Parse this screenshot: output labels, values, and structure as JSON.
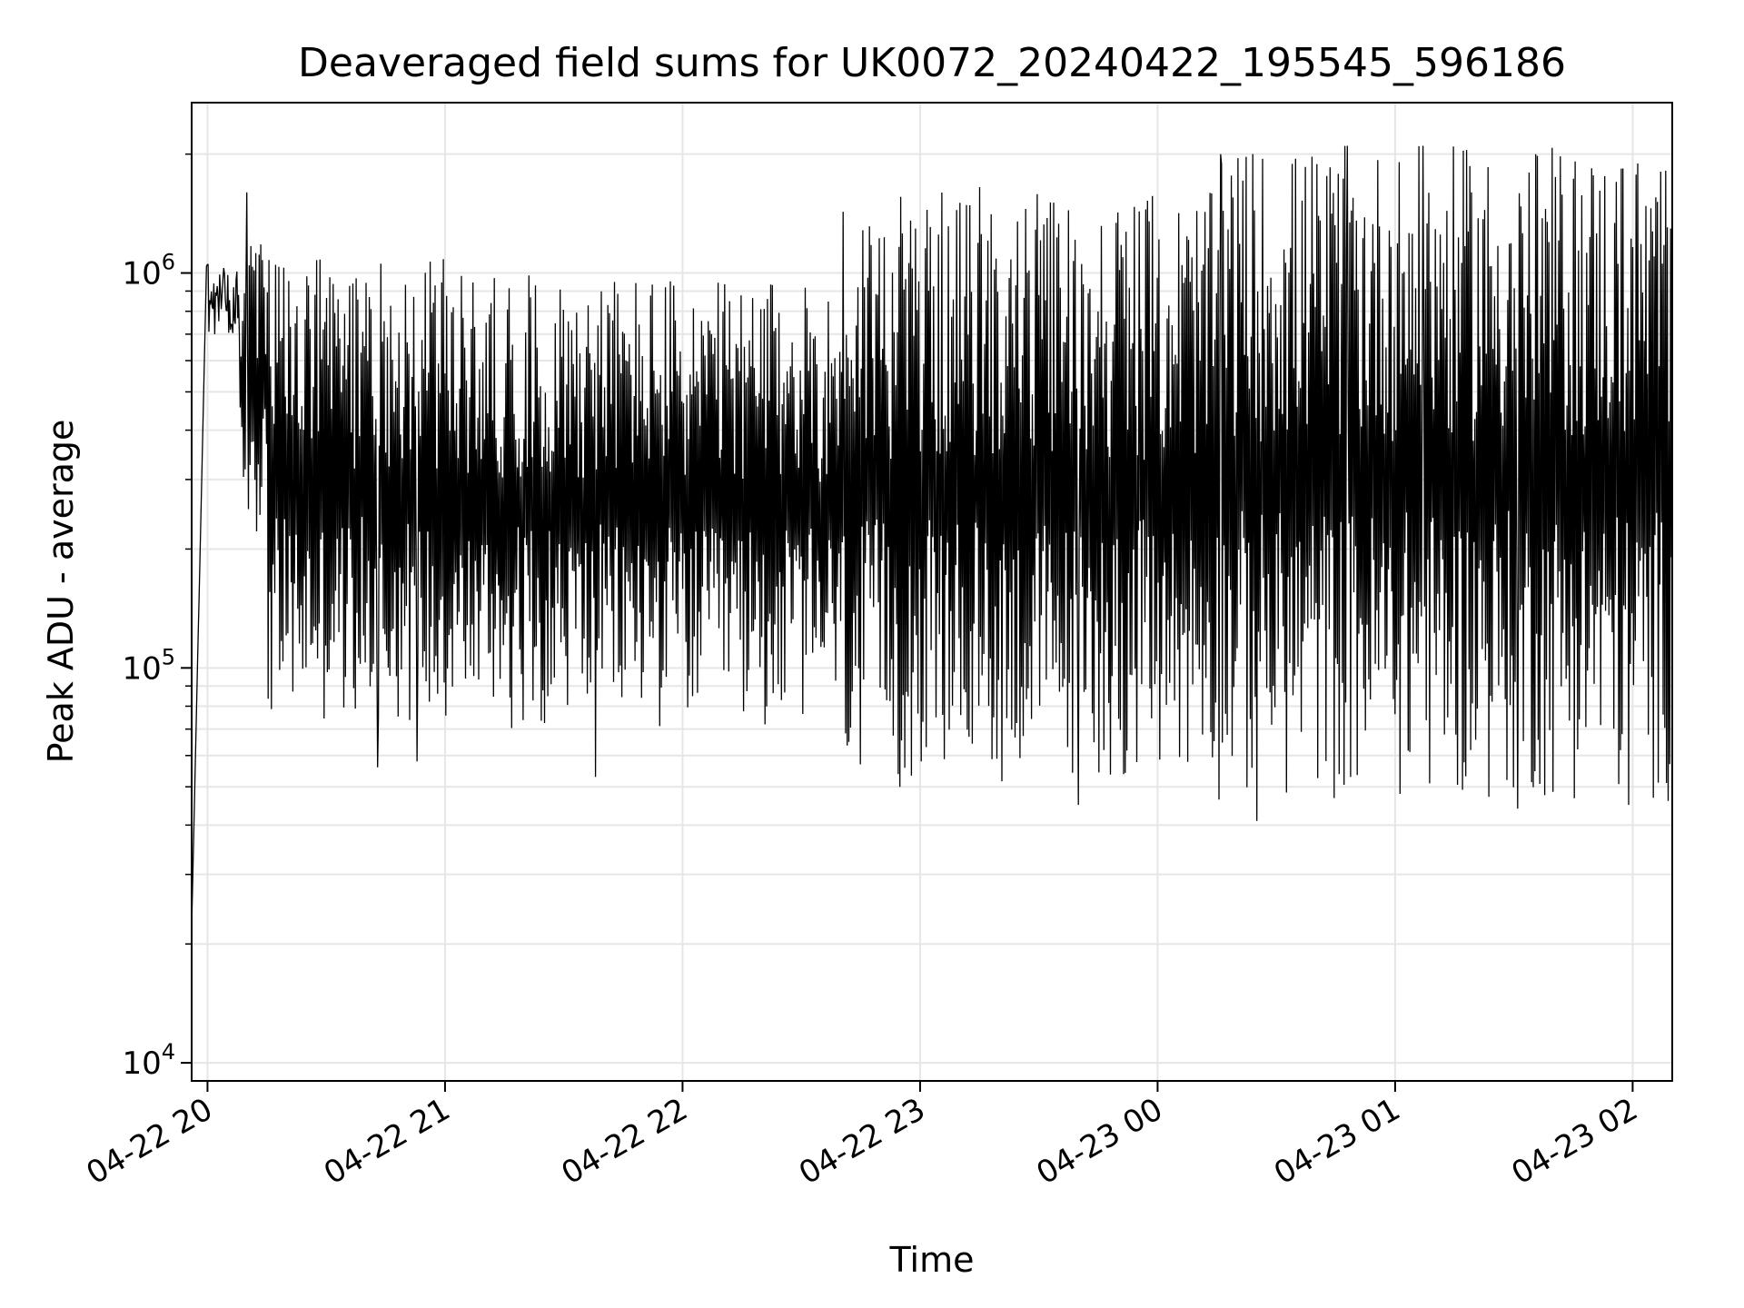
{
  "chart_data": {
    "type": "line",
    "title": "Deaveraged field sums for UK0072_20240422_195545_596186",
    "xlabel": "Time",
    "ylabel": "Peak ADU - average",
    "yscale": "log",
    "ylim": [
      9000,
      2700000
    ],
    "xlim": [
      "2024-04-22 19:56",
      "2024-04-23 02:10"
    ],
    "grid": true,
    "line_color": "#000000",
    "grid_color": "#e6e6e6",
    "x_ticks": [
      {
        "value": "2024-04-22 20:00",
        "label": "04-22 20"
      },
      {
        "value": "2024-04-22 21:00",
        "label": "04-22 21"
      },
      {
        "value": "2024-04-22 22:00",
        "label": "04-22 22"
      },
      {
        "value": "2024-04-22 23:00",
        "label": "04-22 23"
      },
      {
        "value": "2024-04-23 00:00",
        "label": "04-23 00"
      },
      {
        "value": "2024-04-23 01:00",
        "label": "04-23 01"
      },
      {
        "value": "2024-04-23 02:00",
        "label": "04-23 02"
      }
    ],
    "y_ticks": [
      {
        "value": 10000,
        "base": "10",
        "exp": "4"
      },
      {
        "value": 100000,
        "base": "10",
        "exp": "5"
      },
      {
        "value": 1000000,
        "base": "10",
        "exp": "6"
      }
    ],
    "series": [
      {
        "description": "dense oscillating signal; envelope per segment",
        "envelope": [
          {
            "t_start": "2024-04-22 19:56",
            "t_end": "2024-04-22 20:08",
            "low": 22000,
            "high": 1050000
          },
          {
            "t_start": "2024-04-22 20:08",
            "t_end": "2024-04-22 20:15",
            "low": 220000,
            "high": 1250000
          },
          {
            "t_start": "2024-04-22 20:15",
            "t_end": "2024-04-22 21:00",
            "low": 70000,
            "high": 1100000
          },
          {
            "t_start": "2024-04-22 21:00",
            "t_end": "2024-04-22 22:00",
            "low": 70000,
            "high": 1000000
          },
          {
            "t_start": "2024-04-22 22:00",
            "t_end": "2024-04-22 22:40",
            "low": 70000,
            "high": 950000
          },
          {
            "t_start": "2024-04-22 22:40",
            "t_end": "2024-04-23 00:15",
            "low": 50000,
            "high": 1600000
          },
          {
            "t_start": "2024-04-23 00:15",
            "t_end": "2024-04-23 02:10",
            "low": 45000,
            "high": 2100000
          }
        ],
        "spikes": [
          {
            "t": "2024-04-22 20:10",
            "value": 1600000
          },
          {
            "t": "2024-04-22 20:43",
            "value": 56000
          },
          {
            "t": "2024-04-22 20:53",
            "value": 58000
          },
          {
            "t": "2024-04-22 21:38",
            "value": 53000
          },
          {
            "t": "2024-04-22 22:45",
            "value": 57000
          },
          {
            "t": "2024-04-22 22:55",
            "value": 50000
          },
          {
            "t": "2024-04-22 23:15",
            "value": 1650000
          },
          {
            "t": "2024-04-22 23:40",
            "value": 45000
          },
          {
            "t": "2024-04-23 00:16",
            "value": 2000000
          },
          {
            "t": "2024-04-23 00:25",
            "value": 41000
          },
          {
            "t": "2024-04-23 00:48",
            "value": 2100000
          },
          {
            "t": "2024-04-23 01:07",
            "value": 2100000
          },
          {
            "t": "2024-04-23 01:31",
            "value": 44000
          },
          {
            "t": "2024-04-23 01:59",
            "value": 45000
          }
        ]
      }
    ]
  }
}
